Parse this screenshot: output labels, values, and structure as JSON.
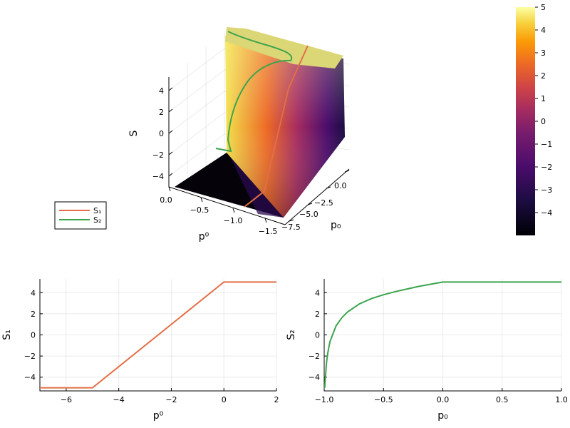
{
  "colors": {
    "s1": "#e26f46",
    "s2": "#3da44d",
    "grid": "#e6e6e6"
  },
  "colorscale": {
    "name": "inferno",
    "ticks": [
      "5",
      "4",
      "3",
      "2",
      "1",
      "0",
      "−1",
      "−2",
      "−3",
      "−4"
    ],
    "range": [
      -5,
      5
    ]
  },
  "surface": {
    "xlabel": "p₀",
    "ylabel": "p⁰",
    "zlabel": "S",
    "xticks": [
      "0.0",
      "−2.5",
      "−5.0",
      "−7.5"
    ],
    "yticks": [
      "0.0",
      "−0.5",
      "−1.0",
      "−1.5"
    ],
    "zticks": [
      "4",
      "2",
      "0",
      "−2",
      "−4"
    ]
  },
  "legend": {
    "s1": "S₁",
    "s2": "S₂"
  },
  "chart_data": [
    {
      "type": "surface",
      "xlabel": "p₀",
      "ylabel": "p⁰",
      "zlabel": "S",
      "x_range": [
        -7.5,
        0
      ],
      "y_range": [
        -1.5,
        0
      ],
      "z_range": [
        -5,
        5
      ],
      "legend": [
        "S₁",
        "S₂"
      ],
      "legend_position": "bottom-left"
    },
    {
      "type": "line",
      "xlabel": "p⁰",
      "ylabel": "S₁",
      "xlim": [
        -7,
        2
      ],
      "ylim": [
        -5.3,
        5.3
      ],
      "xticks": [
        "−6",
        "−4",
        "−2",
        "0",
        "2"
      ],
      "yticks": [
        "4",
        "2",
        "0",
        "−2",
        "−4"
      ],
      "series": [
        {
          "x": [
            -7,
            -5,
            0,
            2
          ],
          "y": [
            -5,
            -5,
            5,
            5
          ]
        }
      ]
    },
    {
      "type": "line",
      "xlabel": "p₀",
      "ylabel": "S₂",
      "xlim": [
        -1,
        1
      ],
      "ylim": [
        -5.3,
        5.3
      ],
      "xticks": [
        "−1.0",
        "−0.5",
        "0.0",
        "0.5",
        "1.0"
      ],
      "yticks": [
        "4",
        "2",
        "0",
        "−2",
        "−4"
      ],
      "series": [
        {
          "x": [
            -0.995,
            -0.99,
            -0.98,
            -0.97,
            -0.96,
            -0.95,
            -0.9,
            -0.85,
            -0.8,
            -0.7,
            -0.6,
            -0.5,
            -0.4,
            -0.3,
            -0.2,
            -0.1,
            0,
            0.25,
            0.5,
            0.75,
            1
          ],
          "y": [
            -5,
            -4,
            -2.6,
            -1.75,
            -1.1,
            -0.6,
            0.85,
            1.65,
            2.2,
            2.95,
            3.45,
            3.8,
            4.1,
            4.35,
            4.6,
            4.8,
            5,
            5,
            5,
            5,
            5
          ]
        }
      ]
    }
  ]
}
